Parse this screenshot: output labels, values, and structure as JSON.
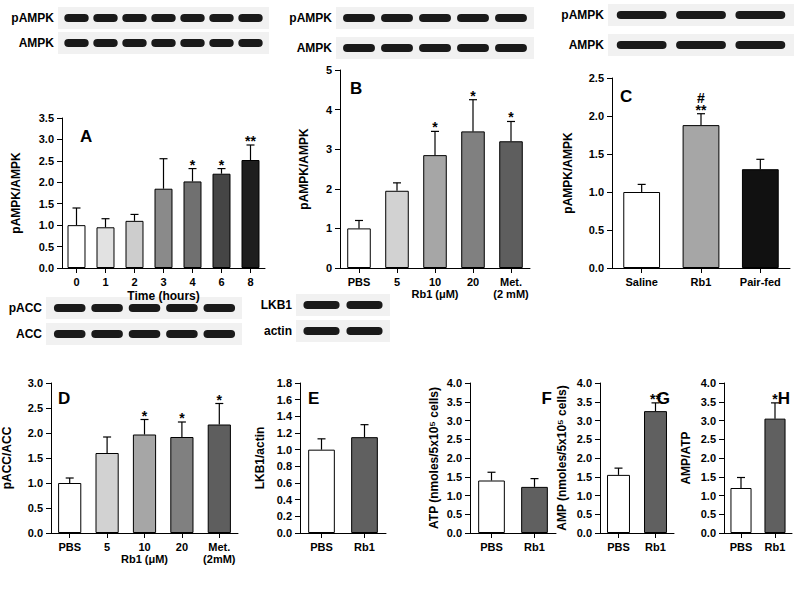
{
  "chart_data": [
    {
      "type": "bar",
      "panel": "A",
      "blots": [
        "pAMPK",
        "AMPK"
      ],
      "y_label": "pAMPK/AMPK",
      "x_label": "Time (hours)",
      "categories": [
        "0",
        "1",
        "2",
        "3",
        "4",
        "6",
        "8"
      ],
      "values": [
        1.0,
        0.95,
        1.1,
        1.85,
        2.02,
        2.2,
        2.52
      ],
      "errors": [
        0.4,
        0.2,
        0.15,
        0.7,
        0.3,
        0.12,
        0.35
      ],
      "annotations": [
        null,
        null,
        null,
        null,
        "*",
        "*",
        "**"
      ],
      "colors": [
        "#ffffff",
        "#e2e2e2",
        "#cdcdcd",
        "#8a8a8a",
        "#707070",
        "#454545",
        "#1e1e1e"
      ],
      "ylim": [
        0,
        3.5
      ],
      "yticks": [
        {
          "value": 0,
          "label": "0.0"
        },
        0.5,
        {
          "value": 1,
          "label": "1.0"
        },
        1.5,
        {
          "value": 2,
          "label": "2.0"
        },
        2.5,
        {
          "value": 3,
          "label": "3.0"
        },
        3.5
      ],
      "grid": false
    },
    {
      "type": "bar",
      "panel": "B",
      "blots": [
        "pAMPK",
        "AMPK"
      ],
      "y_label": "pAMPK/AMPK",
      "categories": [
        "PBS",
        "5",
        "10",
        "20",
        "Met.\n(2 mM)"
      ],
      "group": {
        "label": "Rb1 (μM)",
        "categories": [
          "5",
          "10",
          "20"
        ]
      },
      "values": [
        1.0,
        1.95,
        2.85,
        3.45,
        3.2
      ],
      "errors": [
        0.2,
        0.2,
        0.6,
        0.8,
        0.5
      ],
      "annotations": [
        null,
        null,
        "*",
        "*",
        "*"
      ],
      "colors": [
        "#ffffff",
        "#d2d2d2",
        "#a6a6a6",
        "#808080",
        "#5e5e5e"
      ],
      "ylim": [
        0,
        5
      ],
      "yticks": [
        0,
        1,
        2,
        3,
        4,
        5
      ],
      "grid": false
    },
    {
      "type": "bar",
      "panel": "C",
      "blots": [
        "pAMPK",
        "AMPK"
      ],
      "y_label": "pAMPK/AMPK",
      "categories": [
        "Saline",
        "Rb1",
        "Pair-fed"
      ],
      "values": [
        1.0,
        1.88,
        1.3
      ],
      "errors": [
        0.1,
        0.15,
        0.13
      ],
      "annotations": [
        null,
        "#\n**",
        null
      ],
      "colors": [
        "#ffffff",
        "#a6a6a6",
        "#111111"
      ],
      "ylim": [
        0,
        2.5
      ],
      "yticks": [
        {
          "value": 0,
          "label": "0.0"
        },
        0.5,
        {
          "value": 1,
          "label": "1.0"
        },
        1.5,
        {
          "value": 2,
          "label": "2.0"
        },
        2.5
      ],
      "grid": false
    },
    {
      "type": "bar",
      "panel": "D",
      "blots": [
        "pACC",
        "ACC"
      ],
      "y_label": "pACC/ACC",
      "categories": [
        "PBS",
        "5",
        "10",
        "20",
        "Met.\n(2mM)"
      ],
      "group": {
        "label": "Rb1 (μM)",
        "categories": [
          "5",
          "10",
          "20"
        ]
      },
      "values": [
        1.0,
        1.6,
        1.97,
        1.92,
        2.17
      ],
      "errors": [
        0.1,
        0.32,
        0.3,
        0.3,
        0.42
      ],
      "annotations": [
        null,
        null,
        "*",
        "*",
        "*"
      ],
      "colors": [
        "#ffffff",
        "#d2d2d2",
        "#a6a6a6",
        "#808080",
        "#5e5e5e"
      ],
      "ylim": [
        0,
        3
      ],
      "yticks": [
        {
          "value": 0,
          "label": "0.0"
        },
        0.5,
        {
          "value": 1,
          "label": "1.0"
        },
        1.5,
        {
          "value": 2,
          "label": "2.0"
        },
        2.5,
        {
          "value": 3,
          "label": "3.0"
        }
      ],
      "grid": false
    },
    {
      "type": "bar",
      "panel": "E",
      "blots": [
        "LKB1",
        "actin"
      ],
      "y_label": "LKB1/actin",
      "categories": [
        "PBS",
        "Rb1"
      ],
      "values": [
        1.0,
        1.15
      ],
      "errors": [
        0.13,
        0.15
      ],
      "annotations": [
        null,
        null
      ],
      "colors": [
        "#ffffff",
        "#606060"
      ],
      "ylim": [
        0,
        1.8
      ],
      "yticks": [
        {
          "value": 0,
          "label": "0.0"
        },
        0.2,
        0.4,
        0.6,
        0.8,
        {
          "value": 1,
          "label": "1.0"
        },
        1.2,
        1.4,
        1.6,
        1.8
      ],
      "grid": false
    },
    {
      "type": "bar",
      "panel": "F",
      "y_label": "ATP (nmoles/5x10⁵ cells)",
      "categories": [
        "PBS",
        "Rb1"
      ],
      "values": [
        1.4,
        1.23
      ],
      "errors": [
        0.22,
        0.22
      ],
      "annotations": [
        null,
        null
      ],
      "colors": [
        "#ffffff",
        "#606060"
      ],
      "ylim": [
        0,
        4
      ],
      "yticks": [
        {
          "value": 0,
          "label": "0.0"
        },
        0.5,
        {
          "value": 1,
          "label": "1.0"
        },
        1.5,
        {
          "value": 2,
          "label": "2.0"
        },
        2.5,
        {
          "value": 3,
          "label": "3.0"
        },
        3.5,
        {
          "value": 4,
          "label": "4.0"
        }
      ],
      "grid": false
    },
    {
      "type": "bar",
      "panel": "G",
      "y_label": "AMP (nmoles/5x10⁵ cells)",
      "categories": [
        "PBS",
        "Rb1"
      ],
      "values": [
        1.55,
        3.25
      ],
      "errors": [
        0.18,
        0.22
      ],
      "annotations": [
        null,
        "**"
      ],
      "colors": [
        "#ffffff",
        "#606060"
      ],
      "ylim": [
        0,
        4
      ],
      "yticks": [
        {
          "value": 0,
          "label": "0.0"
        },
        0.5,
        {
          "value": 1,
          "label": "1.0"
        },
        1.5,
        {
          "value": 2,
          "label": "2.0"
        },
        2.5,
        {
          "value": 3,
          "label": "3.0"
        },
        3.5,
        {
          "value": 4,
          "label": "4.0"
        }
      ],
      "grid": false
    },
    {
      "type": "bar",
      "panel": "H",
      "y_label": "AMP/ATP",
      "categories": [
        "PBS",
        "Rb1"
      ],
      "values": [
        1.2,
        3.05
      ],
      "errors": [
        0.28,
        0.42
      ],
      "annotations": [
        null,
        "*"
      ],
      "colors": [
        "#ffffff",
        "#606060"
      ],
      "ylim": [
        0,
        4
      ],
      "yticks": [
        {
          "value": 0,
          "label": "0.0"
        },
        0.5,
        {
          "value": 1,
          "label": "1.0"
        },
        1.5,
        {
          "value": 2,
          "label": "2.0"
        },
        2.5,
        {
          "value": 3,
          "label": "3.0"
        },
        3.5,
        {
          "value": 4,
          "label": "4.0"
        }
      ],
      "grid": false
    }
  ]
}
